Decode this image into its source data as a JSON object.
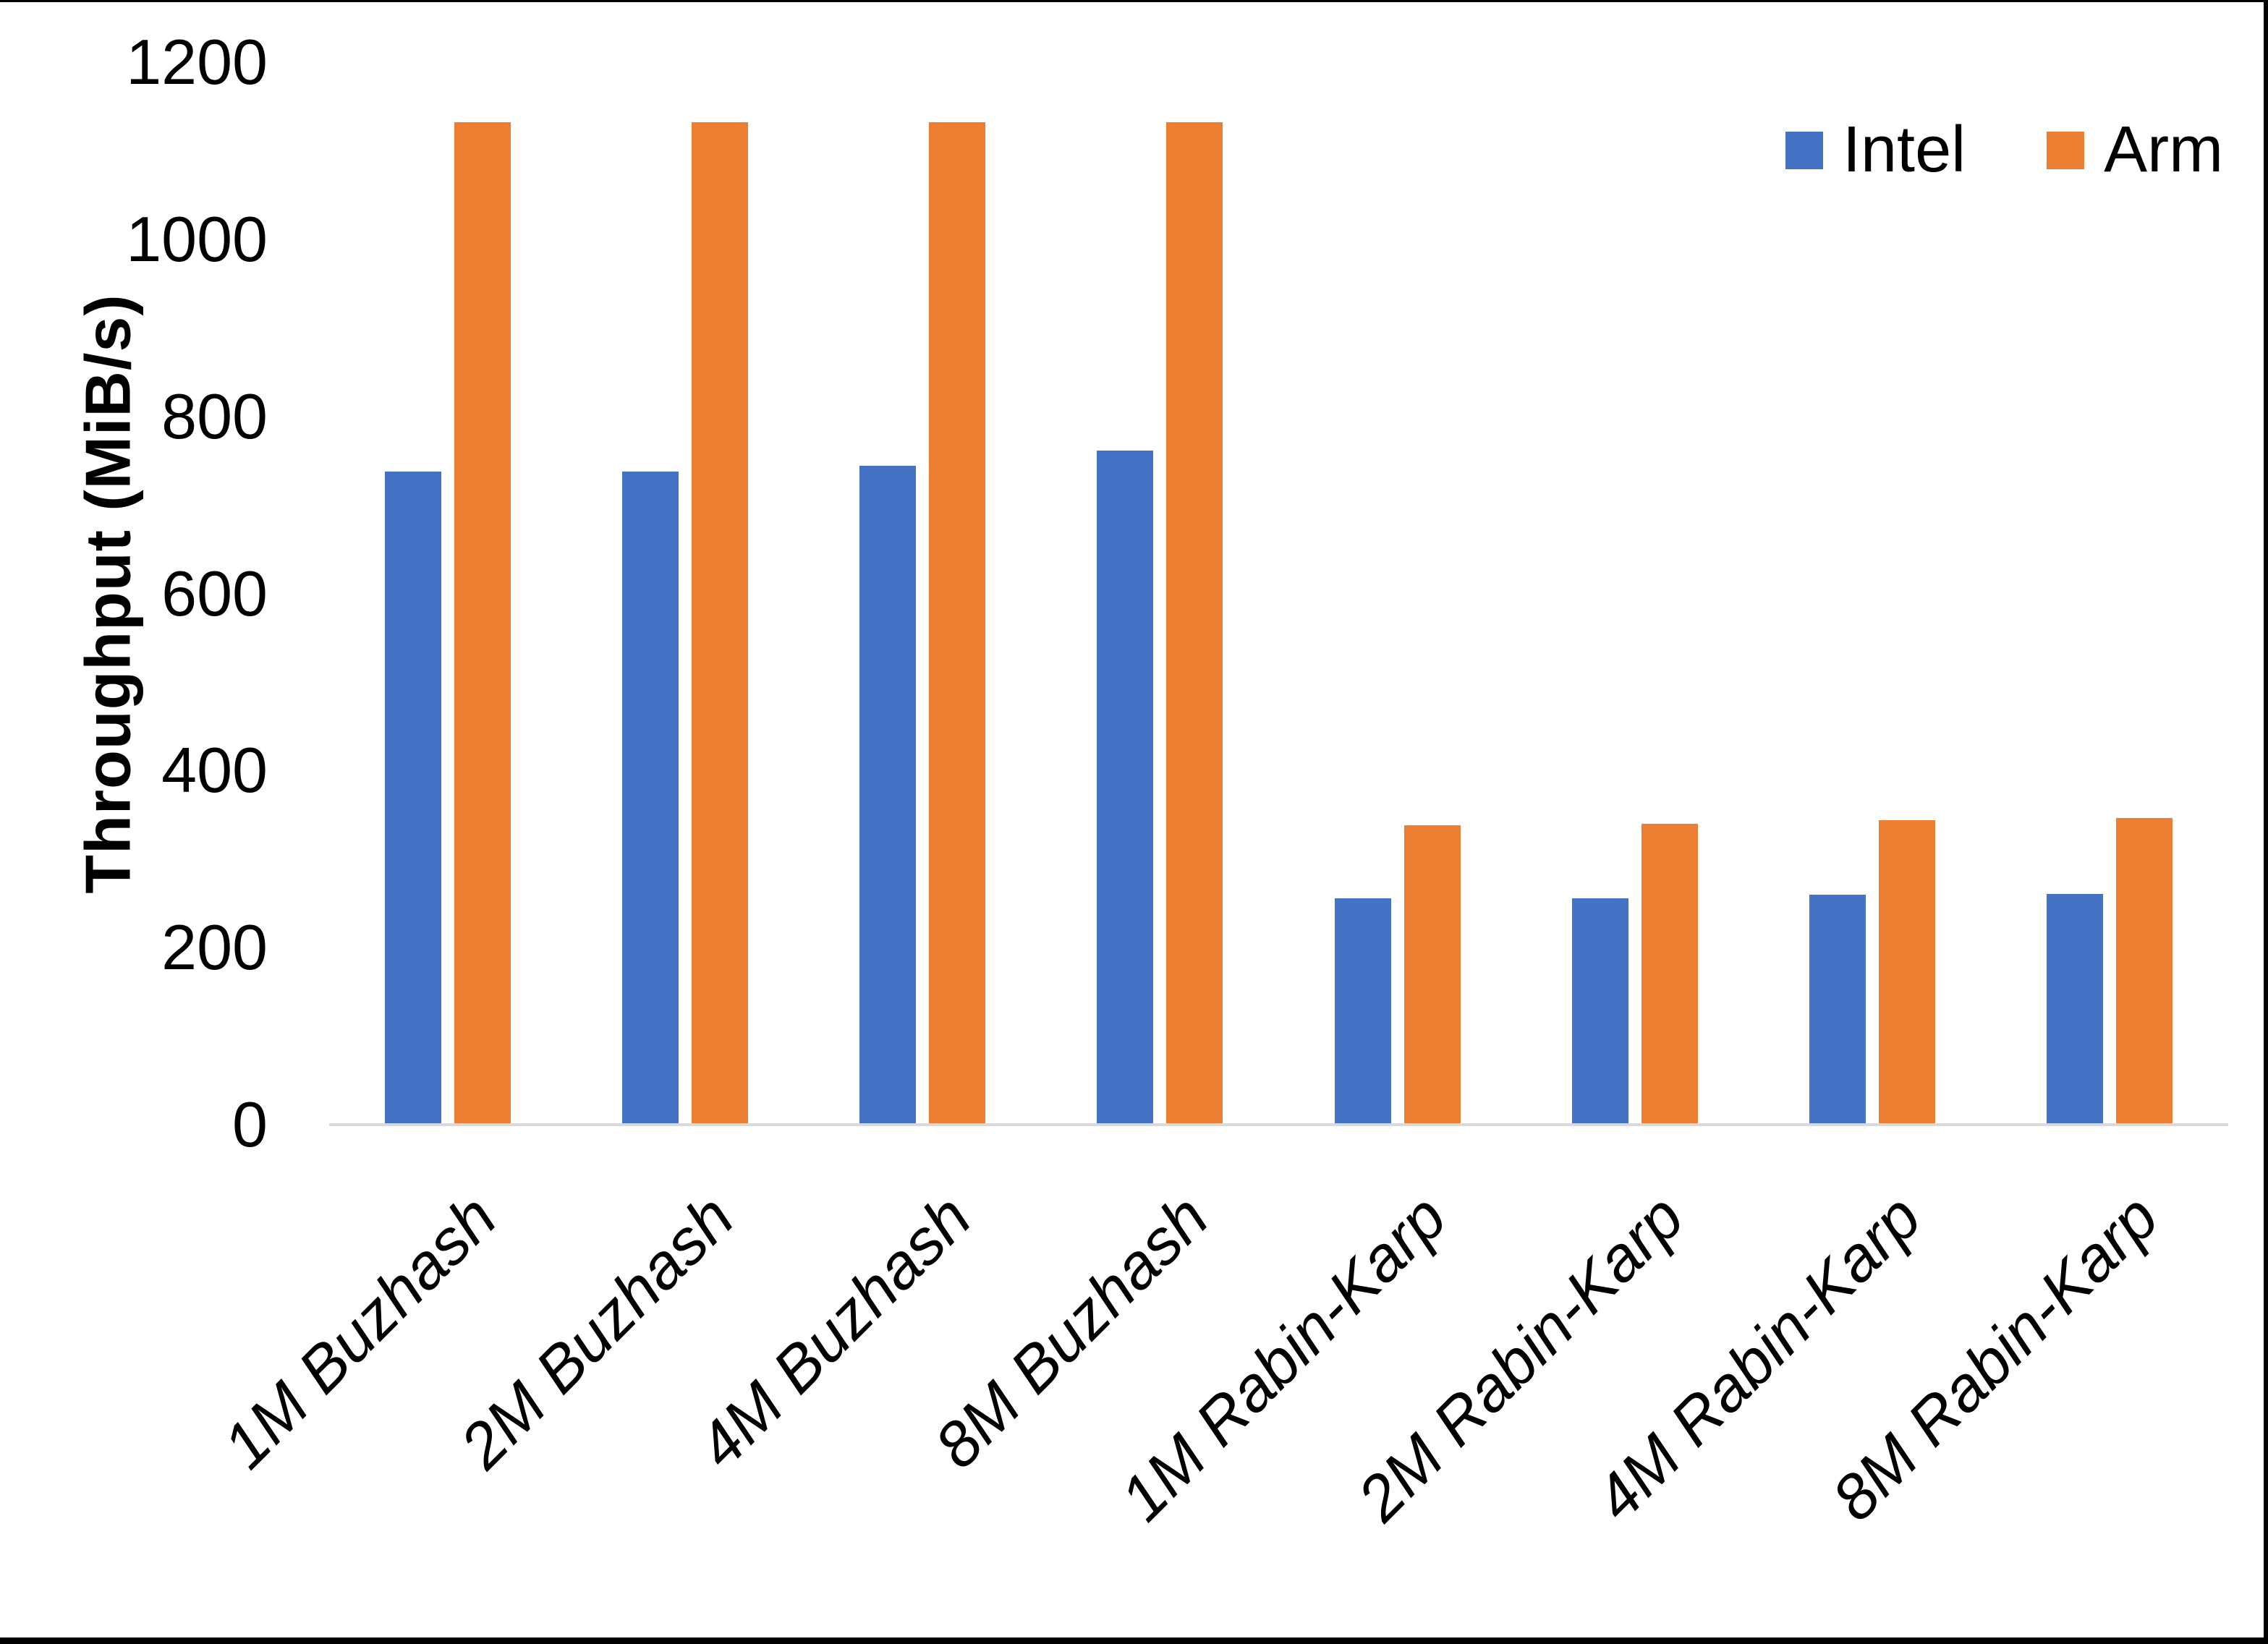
{
  "chart_data": {
    "type": "bar",
    "title": "",
    "xlabel": "",
    "ylabel": "Throughput (MiB/s)",
    "ylim": [
      0,
      1200
    ],
    "yticks": [
      0,
      200,
      400,
      600,
      800,
      1000,
      1200
    ],
    "grid": false,
    "legend_position": "top-right",
    "categories": [
      "1M Buzhash",
      "2M Buzhash",
      "4M Buzhash",
      "8M Buzhash",
      "1M Rabin-Karp",
      "2M Rabin-Karp",
      "4M Rabin-Karp",
      "8M Rabin-Karp"
    ],
    "series": [
      {
        "name": "Intel",
        "color": "#4472c4",
        "values": [
          738,
          738,
          744,
          761,
          256,
          256,
          260,
          261
        ]
      },
      {
        "name": "Arm",
        "color": "#ed7d31",
        "values": [
          1132,
          1132,
          1132,
          1132,
          338,
          340,
          344,
          346
        ]
      }
    ],
    "axis_line_color": "#d9d9d9",
    "text_color": "#000000"
  }
}
